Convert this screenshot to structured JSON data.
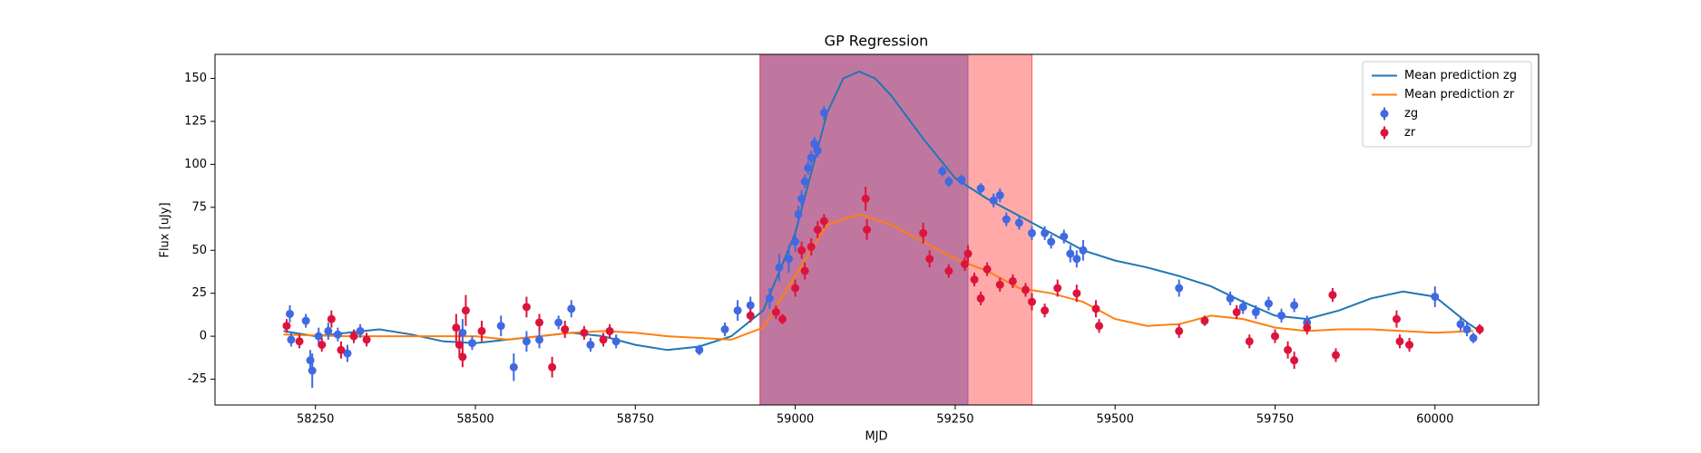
{
  "chart_data": {
    "type": "line",
    "title": "GP Regression",
    "x_label": "MJD",
    "y_label": "Flux [uJy]",
    "xlim": [
      58093,
      60162
    ],
    "ylim": [
      -40,
      164
    ],
    "xticks": [
      58250,
      58500,
      58750,
      59000,
      59250,
      59500,
      59750,
      60000
    ],
    "yticks": [
      -25,
      0,
      25,
      50,
      75,
      100,
      125,
      150
    ],
    "legend": "upper right",
    "xspans": [
      {
        "x0": 58945,
        "x1": 59270,
        "color": "#4169e1",
        "alpha": 0.6
      },
      {
        "x0": 58945,
        "x1": 59370,
        "color": "#ff4040",
        "alpha": 0.45
      }
    ],
    "series": [
      {
        "name": "Mean prediction zg",
        "kind": "line",
        "color": "#1f77b4",
        "x": [
          58200,
          58250,
          58300,
          58350,
          58400,
          58450,
          58500,
          58550,
          58600,
          58650,
          58700,
          58750,
          58800,
          58850,
          58900,
          58950,
          59000,
          59025,
          59050,
          59075,
          59100,
          59125,
          59150,
          59200,
          59250,
          59300,
          59350,
          59400,
          59450,
          59500,
          59550,
          59600,
          59650,
          59700,
          59750,
          59800,
          59850,
          59900,
          59950,
          60000,
          60050,
          60070
        ],
        "values": [
          3,
          0,
          2,
          4,
          1,
          -3,
          -4,
          -2,
          0,
          2,
          0,
          -5,
          -8,
          -6,
          0,
          15,
          60,
          95,
          130,
          150,
          154,
          150,
          140,
          115,
          92,
          80,
          70,
          60,
          50,
          44,
          40,
          35,
          29,
          20,
          12,
          10,
          15,
          22,
          26,
          23,
          8,
          3
        ]
      },
      {
        "name": "Mean prediction zr",
        "kind": "line",
        "color": "#ff7f0e",
        "x": [
          58200,
          58300,
          58400,
          58500,
          58550,
          58600,
          58650,
          58700,
          58750,
          58800,
          58850,
          58900,
          58950,
          59000,
          59050,
          59100,
          59150,
          59200,
          59250,
          59300,
          59350,
          59400,
          59450,
          59500,
          59550,
          59600,
          59650,
          59700,
          59750,
          59800,
          59850,
          59900,
          59950,
          60000,
          60060
        ],
        "values": [
          1,
          0,
          0,
          0,
          -2,
          0,
          2,
          3,
          2,
          0,
          -1,
          -2,
          5,
          35,
          65,
          71,
          65,
          55,
          45,
          38,
          28,
          25,
          20,
          10,
          6,
          7,
          12,
          10,
          5,
          3,
          4,
          4,
          3,
          2,
          3
        ]
      },
      {
        "name": "zg",
        "kind": "errorbar",
        "color": "#4169e1",
        "x": [
          58210,
          58212,
          58235,
          58242,
          58245,
          58255,
          58270,
          58285,
          58300,
          58320,
          58480,
          58495,
          58540,
          58560,
          58580,
          58600,
          58630,
          58650,
          58680,
          58720,
          58850,
          58890,
          58910,
          58930,
          58960,
          58975,
          58990,
          59000,
          59005,
          59010,
          59015,
          59020,
          59025,
          59030,
          59035,
          59045,
          59230,
          59240,
          59260,
          59290,
          59310,
          59320,
          59330,
          59350,
          59370,
          59390,
          59400,
          59420,
          59430,
          59440,
          59450,
          59600,
          59680,
          59700,
          59720,
          59740,
          59760,
          59780,
          59800,
          60000,
          60040,
          60050,
          60060
        ],
        "values": [
          13,
          -2,
          9,
          -14,
          -20,
          0,
          3,
          1,
          -10,
          3,
          2,
          -4,
          6,
          -18,
          -3,
          -2,
          8,
          16,
          -5,
          -3,
          -8,
          4,
          15,
          18,
          22,
          40,
          45,
          55,
          71,
          80,
          90,
          98,
          104,
          112,
          108,
          130,
          96,
          90,
          91,
          86,
          79,
          82,
          68,
          66,
          60,
          60,
          55,
          58,
          48,
          45,
          50,
          28,
          22,
          17,
          14,
          19,
          12,
          18,
          8,
          23,
          7,
          4,
          -1
        ],
        "errors": [
          5,
          4,
          4,
          6,
          10,
          5,
          5,
          4,
          5,
          4,
          8,
          4,
          6,
          8,
          6,
          5,
          4,
          5,
          4,
          4,
          3,
          4,
          6,
          5,
          6,
          8,
          8,
          6,
          5,
          5,
          4,
          4,
          4,
          4,
          4,
          4,
          3,
          3,
          3,
          3,
          4,
          4,
          4,
          4,
          4,
          4,
          4,
          4,
          5,
          5,
          6,
          5,
          4,
          4,
          4,
          4,
          4,
          4,
          4,
          6,
          4,
          4,
          3
        ]
      },
      {
        "name": "zr",
        "kind": "errorbar",
        "color": "#dc143c",
        "x": [
          58205,
          58225,
          58260,
          58275,
          58290,
          58310,
          58330,
          58470,
          58475,
          58480,
          58485,
          58510,
          58580,
          58600,
          58620,
          58640,
          58670,
          58700,
          58710,
          58930,
          58970,
          58980,
          59000,
          59010,
          59015,
          59025,
          59035,
          59045,
          59110,
          59112,
          59200,
          59210,
          59240,
          59265,
          59270,
          59280,
          59290,
          59300,
          59320,
          59340,
          59360,
          59370,
          59390,
          59410,
          59440,
          59470,
          59475,
          59600,
          59640,
          59690,
          59710,
          59750,
          59770,
          59780,
          59800,
          59840,
          59845,
          59940,
          59945,
          59960,
          60070
        ],
        "values": [
          6,
          -3,
          -5,
          10,
          -8,
          0,
          -2,
          5,
          -5,
          -12,
          15,
          3,
          17,
          8,
          -18,
          4,
          2,
          -2,
          3,
          12,
          14,
          10,
          28,
          50,
          38,
          52,
          62,
          67,
          80,
          62,
          60,
          45,
          38,
          42,
          48,
          33,
          22,
          39,
          30,
          32,
          27,
          20,
          15,
          28,
          25,
          16,
          6,
          3,
          9,
          14,
          -3,
          0,
          -8,
          -14,
          5,
          24,
          -11,
          10,
          -3,
          -5,
          4
        ],
        "errors": [
          4,
          4,
          4,
          5,
          5,
          4,
          4,
          8,
          7,
          6,
          9,
          6,
          6,
          5,
          6,
          5,
          4,
          4,
          4,
          4,
          4,
          3,
          5,
          5,
          5,
          5,
          5,
          4,
          7,
          6,
          6,
          5,
          4,
          4,
          5,
          4,
          4,
          4,
          4,
          4,
          4,
          5,
          4,
          5,
          5,
          5,
          4,
          4,
          3,
          4,
          4,
          4,
          5,
          5,
          4,
          4,
          4,
          5,
          4,
          4,
          3
        ]
      }
    ]
  }
}
